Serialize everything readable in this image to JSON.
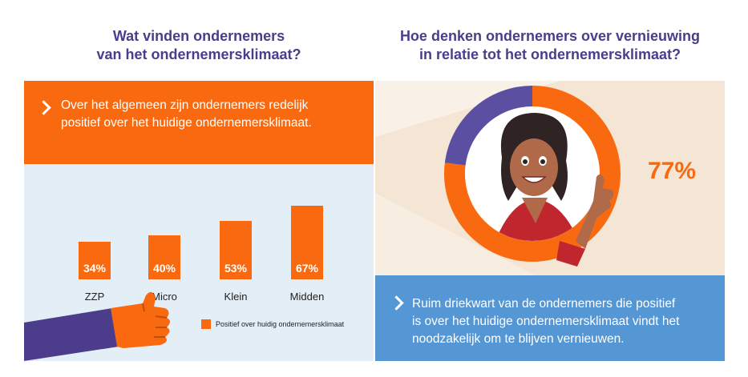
{
  "left": {
    "title_line1": "Wat vinden ondernemers",
    "title_line2": "van het ondernemersklimaat?",
    "banner_line1": "Over het algemeen zijn ondernemers redelijk",
    "banner_line2": "positief over het huidige ondernemersklimaat."
  },
  "right": {
    "title_line1": "Hoe denken ondernemers over vernieuwing",
    "title_line2": "in relatie tot het ondernemersklimaat?",
    "banner_line1": "Ruim driekwart van de ondernemers die positief",
    "banner_line2": "is over het huidige ondernemersklimaat vindt het",
    "banner_line3": "noodzakelijk om te blijven vernieuwen.",
    "percentage_label": "77%"
  },
  "chart_data": [
    {
      "type": "bar",
      "categories": [
        "ZZP",
        "Micro",
        "Klein",
        "Midden"
      ],
      "series": [
        {
          "name": "Positief over huidig ondernemersklimaat",
          "values": [
            34,
            40,
            53,
            67
          ]
        }
      ],
      "value_labels": [
        "34%",
        "40%",
        "53%",
        "67%"
      ],
      "unit": "%",
      "legend": "bottom-right",
      "colors": {
        "bar": "#f96a10",
        "background": "#e3eef7"
      }
    },
    {
      "type": "pie",
      "variant": "donut",
      "values": [
        77,
        23
      ],
      "value_label": "77%",
      "colors": [
        "#f96a10",
        "#5a4fa0"
      ]
    }
  ],
  "colors": {
    "orange": "#f96a10",
    "purple": "#4b3c8c",
    "blue": "#5596d4",
    "light_blue": "#e3eef7",
    "beige": "#f4e5d4"
  },
  "icons": [
    "chevron-right-icon",
    "thumbs-up-hand-icon",
    "woman-thumbs-up-illustration"
  ]
}
